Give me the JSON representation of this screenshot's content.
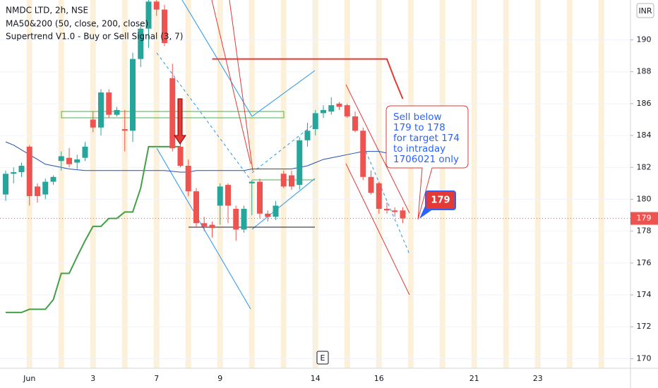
{
  "chart_data": {
    "type": "candlestick",
    "title": "NMDC LTD, 2h, NSE",
    "indicators": [
      "MA50&200 (50, close, 200, close)",
      "Supertrend V1.0 - Buy or Sell Signal (3, 7)"
    ],
    "currency": "INR",
    "categories": [
      null,
      null,
      null,
      "Jun",
      null,
      null,
      null,
      null,
      null,
      null,
      null,
      "3",
      null,
      null,
      null,
      null,
      null,
      null,
      null,
      "7",
      null,
      null,
      null,
      null,
      null,
      null,
      null,
      "9",
      null,
      null,
      null,
      null,
      null,
      null,
      null,
      null,
      null,
      null,
      null,
      "14",
      null,
      null,
      null,
      null,
      null,
      null,
      null,
      "16",
      null,
      null,
      null,
      null,
      null,
      null,
      null,
      null,
      null,
      null,
      null,
      "21",
      null,
      null,
      null,
      null,
      null,
      null,
      null,
      "23",
      null,
      null,
      null,
      null,
      null,
      null,
      null,
      null,
      null,
      null,
      null
    ],
    "open": [
      180.3,
      181.6,
      181.7,
      183.3,
      180.8,
      180.3,
      181.1,
      182.4,
      182.6,
      182.3,
      182.6,
      185.0,
      184.5,
      186.7,
      185.3,
      184.4,
      184.3,
      188.8,
      190.7,
      192.4,
      191.9,
      187.6,
      183.3,
      182.1,
      180.5,
      178.5,
      178.4,
      179.6,
      180.9,
      179.4,
      178.1,
      181.0,
      181.1,
      179.1,
      178.9,
      181.6,
      181.5,
      180.9,
      183.7,
      184.4,
      185.4,
      185.5,
      186.0,
      185.9,
      185.2,
      184.3,
      181.4,
      181.0,
      179.4,
      179.3,
      179.3,
      null,
      null,
      null,
      null,
      null,
      null,
      null,
      null,
      null,
      null,
      null,
      null,
      null,
      null,
      null,
      null,
      null,
      null,
      null,
      null,
      null,
      null,
      null,
      null,
      null,
      null,
      null,
      null
    ],
    "high": [
      181.8,
      182.0,
      182.3,
      183.4,
      181.0,
      181.3,
      181.5,
      183.0,
      183.2,
      182.8,
      183.6,
      185.5,
      186.9,
      186.9,
      185.8,
      185.6,
      189.2,
      191.0,
      192.6,
      192.6,
      192.2,
      188.5,
      183.6,
      182.5,
      180.7,
      178.9,
      178.6,
      181.0,
      181.0,
      179.6,
      179.6,
      181.2,
      181.3,
      179.3,
      179.9,
      181.8,
      181.8,
      183.9,
      184.8,
      185.6,
      185.9,
      186.4,
      186.1,
      186.0,
      185.5,
      184.5,
      181.8,
      181.1,
      179.8,
      179.5,
      179.5,
      null,
      null,
      null,
      null,
      null,
      null,
      null,
      null,
      null,
      null,
      null,
      null,
      null,
      null,
      null,
      null,
      null,
      null,
      null,
      null,
      null,
      null,
      null,
      null,
      null,
      null,
      null,
      null
    ],
    "low": [
      179.9,
      181.0,
      181.4,
      179.6,
      179.8,
      180.0,
      180.9,
      181.8,
      182.0,
      181.9,
      182.4,
      184.2,
      184.0,
      185.1,
      185.2,
      183.0,
      183.6,
      188.3,
      189.5,
      191.5,
      189.6,
      183.0,
      182.0,
      180.2,
      178.2,
      178.0,
      177.6,
      178.4,
      178.5,
      177.4,
      177.9,
      179.0,
      178.8,
      178.6,
      178.7,
      180.7,
      180.6,
      180.6,
      183.3,
      184.0,
      185.1,
      185.3,
      185.6,
      185.1,
      184.2,
      181.2,
      180.3,
      179.1,
      179.1,
      178.9,
      178.5,
      null,
      null,
      null,
      null,
      null,
      null,
      null,
      null,
      null,
      null,
      null,
      null,
      null,
      null,
      null,
      null,
      null,
      null,
      null,
      null,
      null,
      null,
      null,
      null,
      null,
      null,
      null,
      null
    ],
    "close": [
      181.6,
      181.7,
      182.1,
      180.2,
      180.2,
      181.1,
      181.4,
      182.7,
      182.2,
      182.5,
      183.3,
      184.5,
      186.7,
      185.3,
      185.6,
      184.3,
      188.8,
      190.7,
      192.4,
      191.9,
      189.8,
      183.2,
      182.1,
      180.5,
      178.5,
      178.3,
      178.2,
      180.8,
      179.6,
      178.1,
      179.4,
      181.1,
      179.1,
      178.9,
      179.6,
      180.8,
      180.8,
      183.7,
      184.3,
      185.4,
      185.6,
      185.9,
      185.8,
      185.2,
      184.3,
      181.4,
      180.4,
      179.4,
      179.3,
      179.2,
      178.8,
      null,
      null,
      null,
      null,
      null,
      null,
      null,
      null,
      null,
      null,
      null,
      null,
      null,
      null,
      null,
      null,
      null,
      null,
      null,
      null,
      null,
      null,
      null,
      null,
      null,
      null,
      null,
      null
    ],
    "up_color": "#26a69a",
    "down_color": "#ef5350",
    "lines": [
      {
        "color": "#1e50b4",
        "values": [
          183.6,
          183.4,
          183.1,
          182.8,
          182.5,
          182.2,
          182.1,
          182.0,
          181.9,
          181.85,
          181.8,
          181.8,
          181.8,
          181.8,
          181.8,
          181.8,
          181.8,
          181.8,
          181.8,
          181.8,
          181.8,
          181.75,
          181.7,
          181.7,
          181.8,
          181.8,
          181.8,
          181.8,
          181.8,
          181.8,
          181.8,
          181.9,
          181.9,
          181.9,
          181.9,
          181.9,
          181.9,
          182.0,
          182.1,
          182.3,
          182.5,
          182.6,
          182.7,
          182.8,
          182.9,
          183.0,
          183.0,
          183.0,
          182.9,
          182.9,
          182.9,
          null,
          null,
          null,
          null,
          null,
          null,
          null,
          null,
          null,
          null,
          null,
          null,
          null,
          null,
          null,
          null,
          null,
          null,
          null,
          null,
          null,
          null,
          null,
          null,
          null,
          null,
          null,
          null
        ]
      },
      {
        "color": "#43a047",
        "values": [
          172.9,
          172.9,
          172.9,
          173.1,
          173.1,
          173.1,
          173.7,
          175.35,
          175.35,
          176.4,
          177.4,
          178.3,
          178.3,
          178.8,
          178.8,
          179.2,
          179.2,
          180.7,
          183.3,
          183.3,
          183.3,
          183.3,
          183.3,
          null,
          null,
          null,
          null,
          null,
          null,
          null,
          null,
          null,
          null,
          null,
          null,
          null,
          null,
          null,
          null,
          null,
          null,
          null,
          null,
          null,
          null,
          null,
          null,
          null,
          null,
          null,
          null,
          null,
          null,
          null,
          null,
          null,
          null,
          null,
          null,
          null,
          null,
          null,
          null,
          null,
          null,
          null,
          null,
          null,
          null,
          null,
          null,
          null,
          null,
          null,
          null,
          null,
          null,
          null,
          null
        ]
      },
      {
        "color": "#e53935",
        "values": [
          null,
          null,
          null,
          null,
          null,
          null,
          null,
          null,
          null,
          null,
          null,
          null,
          null,
          null,
          null,
          null,
          null,
          null,
          null,
          null,
          null,
          null,
          null,
          null,
          null,
          null,
          188.8,
          188.8,
          188.8,
          188.8,
          188.8,
          188.8,
          188.8,
          188.8,
          188.8,
          188.8,
          188.8,
          188.8,
          188.8,
          188.8,
          188.8,
          188.8,
          188.8,
          188.8,
          188.8,
          188.8,
          188.8,
          188.8,
          188.8,
          187.5,
          186.3,
          null,
          null,
          null,
          null,
          null,
          null,
          null,
          null,
          null,
          null,
          null,
          null,
          null,
          null,
          null,
          null,
          null,
          null,
          null,
          null,
          null,
          null,
          null,
          null,
          null,
          null,
          null,
          null
        ]
      }
    ],
    "ylim": [
      169.4,
      192.5
    ],
    "yticks": [
      170,
      172,
      174,
      176,
      178,
      180,
      182,
      184,
      186,
      188,
      190
    ],
    "grid": true,
    "last_price": {
      "value": 178.8,
      "label": "179"
    },
    "price_callout": "179",
    "note": [
      "Sell below",
      "179 to 178",
      "for target 174",
      "to intraday",
      "1706021 only"
    ],
    "event_marker": "E"
  }
}
